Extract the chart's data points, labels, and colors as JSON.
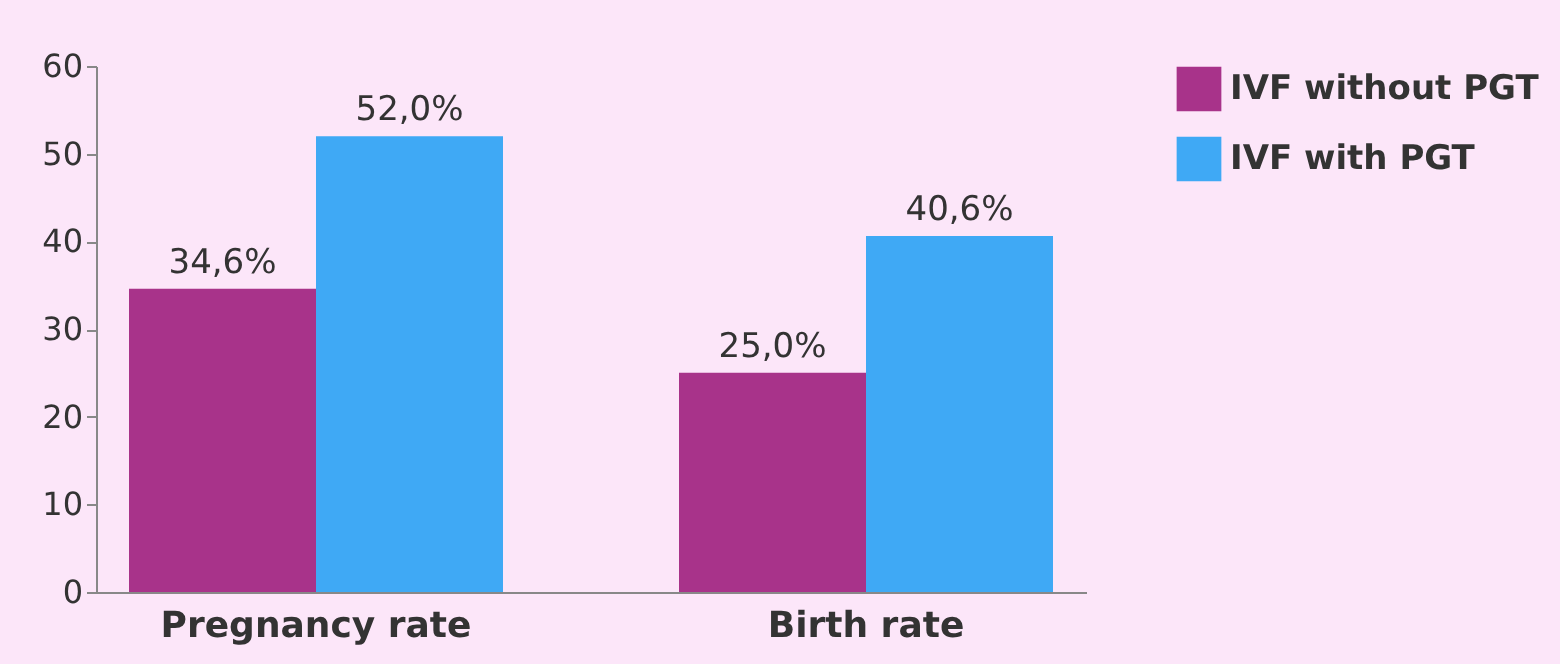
{
  "chart_data": {
    "type": "bar",
    "categories": [
      "Pregnancy rate",
      "Birth rate"
    ],
    "series": [
      {
        "name": "IVF without PGT",
        "color": "#a8338a",
        "values": [
          34.6,
          25.0
        ],
        "value_labels": [
          "34,6%",
          "25,0%"
        ]
      },
      {
        "name": "IVF with PGT",
        "color": "#3fa9f5",
        "values": [
          52.0,
          40.6
        ],
        "value_labels": [
          "52,0%",
          "40,6%"
        ]
      }
    ],
    "ylim": [
      0,
      60
    ],
    "yticks": [
      0,
      10,
      20,
      30,
      40,
      50,
      60
    ],
    "grid": false,
    "legend": "top right"
  }
}
